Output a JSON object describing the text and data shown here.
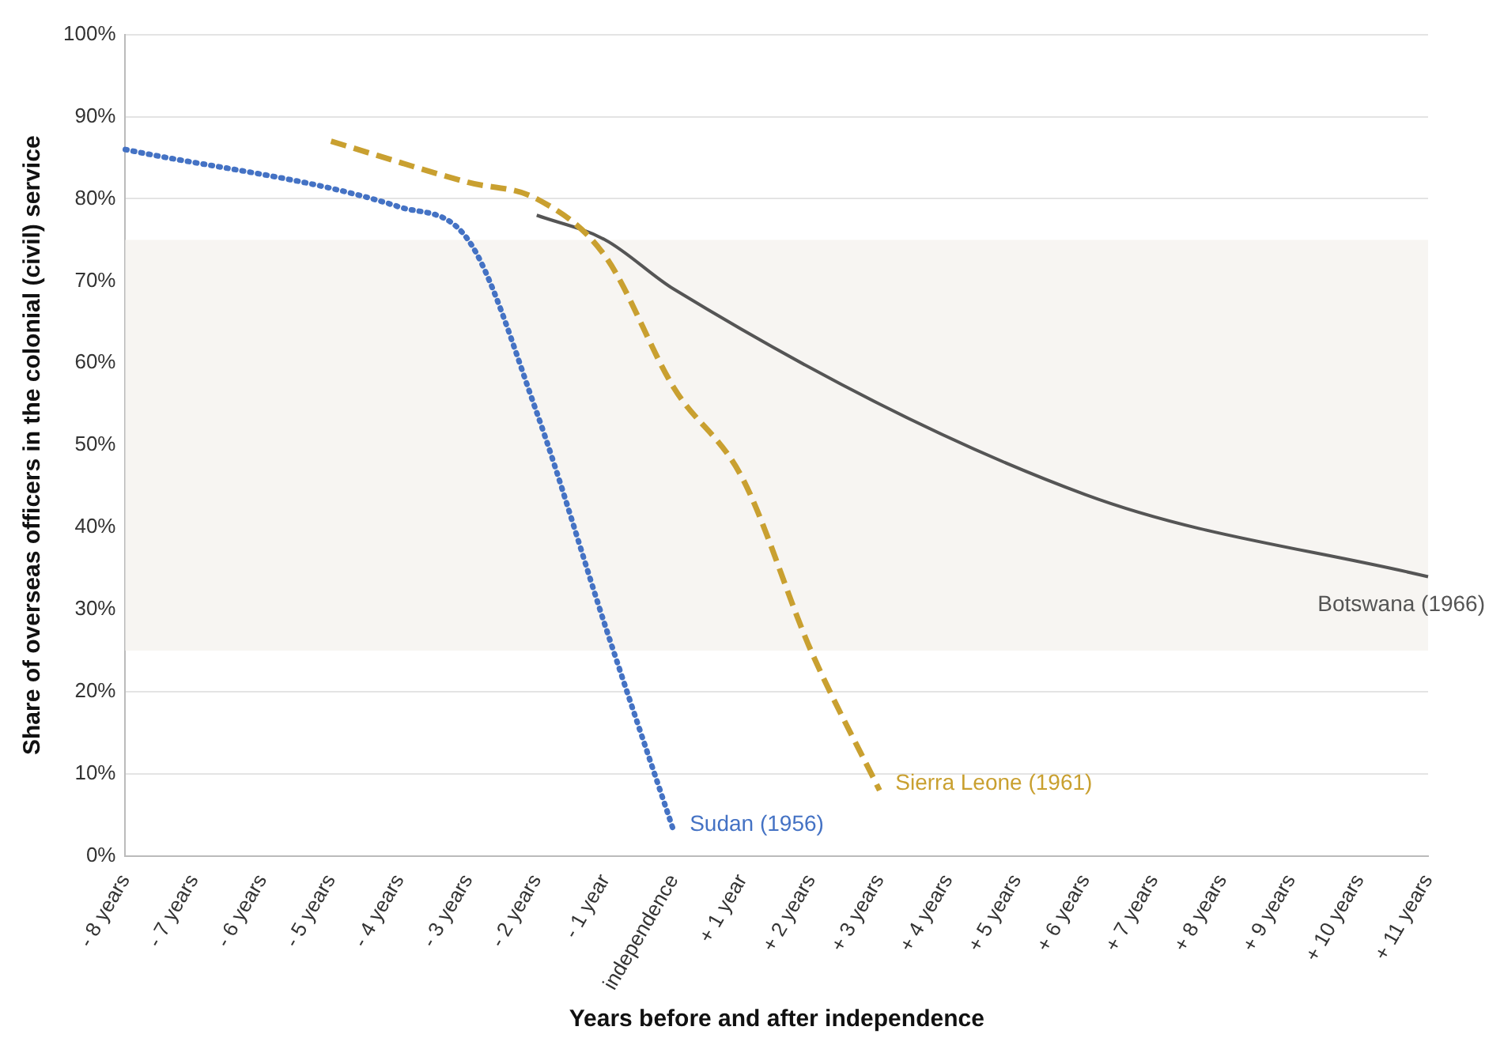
{
  "chart_data": {
    "type": "line",
    "xlabel": "Years before and after independence",
    "ylabel": "Share of overseas officers in the colonial (civil) service",
    "categories": [
      "- 8 years",
      "- 7 years",
      "- 6 years",
      "- 5 years",
      "- 4 years",
      "- 3 years",
      "- 2 years",
      "- 1 year",
      "independence",
      "+ 1 year",
      "+ 2 years",
      "+ 3 years",
      "+ 4 years",
      "+ 5 years",
      "+ 6 years",
      "+ 7 years",
      "+ 8 years",
      "+ 9 years",
      "+ 10 years",
      "+ 11 years"
    ],
    "series": [
      {
        "name": "Sudan (1956)",
        "color": "#4472c4",
        "line_style": "dotted",
        "values": [
          86,
          null,
          null,
          null,
          79,
          75,
          54,
          28,
          3,
          null,
          null,
          null,
          null,
          null,
          null,
          null,
          null,
          null,
          null,
          null
        ]
      },
      {
        "name": "Sierra Leone (1961)",
        "color": "#c9a030",
        "line_style": "dashed",
        "values": [
          null,
          null,
          null,
          87,
          null,
          82,
          80,
          73,
          57,
          46,
          25,
          8,
          null,
          null,
          null,
          null,
          null,
          null,
          null,
          null
        ]
      },
      {
        "name": "Botswana (1966)",
        "color": "#555555",
        "line_style": "solid",
        "values": [
          null,
          null,
          null,
          null,
          null,
          null,
          78,
          75,
          69,
          null,
          null,
          null,
          null,
          null,
          44,
          null,
          null,
          null,
          null,
          34
        ]
      }
    ],
    "ylim": [
      0,
      100
    ],
    "yticks": [
      {
        "value": 0,
        "label": "0%"
      },
      {
        "value": 10,
        "label": "10%"
      },
      {
        "value": 20,
        "label": "20%"
      },
      {
        "value": 30,
        "label": "30%"
      },
      {
        "value": 40,
        "label": "40%"
      },
      {
        "value": 50,
        "label": "50%"
      },
      {
        "value": 60,
        "label": "60%"
      },
      {
        "value": 70,
        "label": "70%"
      },
      {
        "value": 80,
        "label": "80%"
      },
      {
        "value": 90,
        "label": "90%"
      },
      {
        "value": 100,
        "label": "100%"
      }
    ],
    "bands": [
      {
        "axis": "y",
        "from": 25,
        "to": 75,
        "color": "#f7f5f2"
      }
    ],
    "grid": "y",
    "legend": false,
    "marker": "none"
  }
}
